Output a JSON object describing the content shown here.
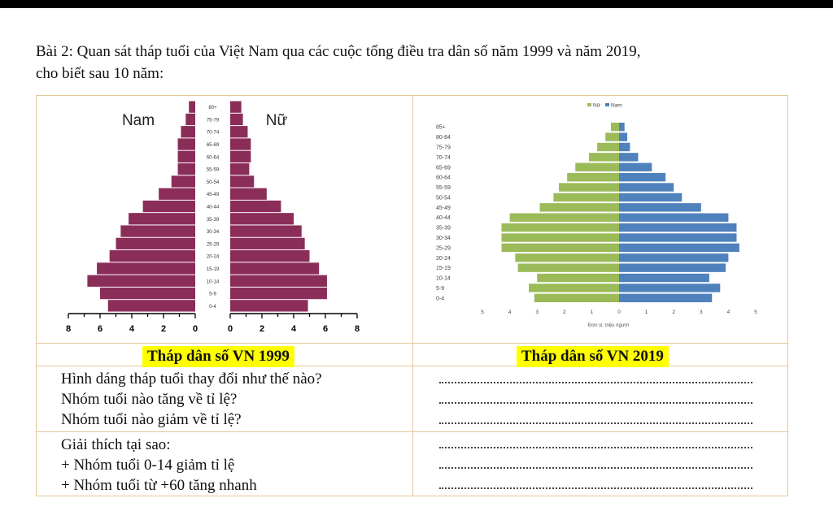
{
  "question": {
    "line1": "Bài 2:  Quan sát tháp tuổi của Việt Nam qua các cuộc tổng điều tra dân số năm 1999 và năm 2019,",
    "line2": "cho biết sau 10 năm:"
  },
  "captions": {
    "left": "Tháp dân số VN 1999",
    "right": "Tháp dân số VN 2019"
  },
  "questions_block1": [
    "Hình dáng tháp tuổi thay đổi như thế nào?",
    "Nhóm tuổi nào tăng về tỉ lệ?",
    "Nhóm tuổi nào giảm về tỉ lệ?"
  ],
  "questions_block2": [
    "Giải thích tại sao:",
    "+ Nhóm tuổi 0-14 giảm tỉ lệ",
    "+ Nhóm tuổi từ +60 tăng nhanh"
  ],
  "answer_blank": "........................................................................................",
  "chart_data": [
    {
      "type": "bar",
      "orientation": "horizontal-pyramid",
      "labels": {
        "left": "Nam",
        "right": "Nữ"
      },
      "categories": [
        "0-4",
        "5-9",
        "10-14",
        "15-19",
        "20-24",
        "25-29",
        "30-34",
        "35-39",
        "40-44",
        "45-49",
        "50-54",
        "55-59",
        "60-64",
        "65-69",
        "70-74",
        "75-79",
        "80+"
      ],
      "series": [
        {
          "name": "Nam",
          "values": [
            5.5,
            6.0,
            6.8,
            6.2,
            5.4,
            5.0,
            4.7,
            4.2,
            3.3,
            2.3,
            1.5,
            1.1,
            1.1,
            1.1,
            0.9,
            0.6,
            0.4
          ]
        },
        {
          "name": "Nữ",
          "values": [
            4.9,
            6.1,
            6.1,
            5.6,
            5.0,
            4.7,
            4.5,
            4.0,
            3.2,
            2.3,
            1.5,
            1.2,
            1.3,
            1.3,
            1.1,
            0.8,
            0.7
          ]
        }
      ],
      "x_ticks_left": [
        "8",
        "6",
        "4",
        "2",
        "0"
      ],
      "x_ticks_right": [
        "0",
        "2",
        "4",
        "6",
        "8"
      ],
      "xlim": [
        0,
        8
      ],
      "color": "#8b2d59"
    },
    {
      "type": "bar",
      "orientation": "horizontal-pyramid",
      "legend": [
        "Nữ",
        "Nam"
      ],
      "legend_position": "top",
      "categories": [
        "0-4",
        "5-9",
        "10-14",
        "15-19",
        "20-24",
        "25-29",
        "30-34",
        "35-39",
        "40-44",
        "45-49",
        "50-54",
        "55-59",
        "60-64",
        "65-69",
        "70-74",
        "75-79",
        "80-84",
        "85+"
      ],
      "series": [
        {
          "name": "Nữ",
          "values": [
            3.1,
            3.3,
            3.0,
            3.7,
            3.8,
            4.3,
            4.3,
            4.3,
            4.0,
            2.9,
            2.4,
            2.2,
            1.9,
            1.6,
            1.1,
            0.8,
            0.5,
            0.3
          ]
        },
        {
          "name": "Nam",
          "values": [
            3.4,
            3.7,
            3.3,
            3.9,
            4.0,
            4.4,
            4.3,
            4.3,
            4.0,
            3.0,
            2.3,
            2.0,
            1.7,
            1.2,
            0.7,
            0.4,
            0.3,
            0.2
          ]
        }
      ],
      "x_ticks": [
        "5",
        "4",
        "3",
        "2",
        "1",
        "0",
        "1",
        "2",
        "3",
        "4",
        "5"
      ],
      "xlim": [
        0,
        5
      ],
      "xlabel": "Đơn vị: triệu người",
      "colors": {
        "Nữ": "#9bbb59",
        "Nam": "#4f81bd"
      }
    }
  ]
}
